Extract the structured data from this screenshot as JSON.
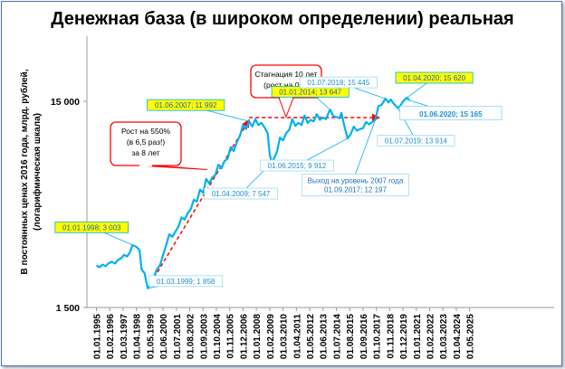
{
  "chart_data": {
    "type": "line",
    "title": "Денежная база (в широком определении) реальная",
    "ylabel_lines": [
      "В постоянных ценах 2016 года, млрд. рублей,",
      "(логарифмическая шкала)"
    ],
    "y_scale": "log",
    "ylim": [
      1500,
      24000
    ],
    "y_ticks": [
      {
        "value": 1500,
        "label": "1 500"
      },
      {
        "value": 15000,
        "label": "15 000"
      }
    ],
    "x_ticks": [
      "01.01.1995",
      "01.02.1996",
      "01.03.1997",
      "01.04.1998",
      "01.05.1999",
      "01.06.2000",
      "01.07.2001",
      "01.08.2002",
      "01.09.2003",
      "01.10.2004",
      "01.11.2005",
      "01.12.2006",
      "01.01.2008",
      "01.02.2009",
      "01.03.2010",
      "01.04.2011",
      "01.05.2012",
      "01.06.2013",
      "01.07.2014",
      "01.08.2015",
      "01.09.2016",
      "01.10.2017",
      "01.11.2018",
      "01.12.2019",
      "01.01.2021",
      "01.02.2022",
      "01.03.2023",
      "01.04.2024",
      "01.05.2025"
    ],
    "grid": false,
    "series": [
      {
        "color": "#00b0f0",
        "points": [
          [
            "1995-01",
            2400
          ],
          [
            "1995-04",
            2350
          ],
          [
            "1995-07",
            2420
          ],
          [
            "1995-10",
            2380
          ],
          [
            "1996-01",
            2460
          ],
          [
            "1996-04",
            2500
          ],
          [
            "1996-07",
            2450
          ],
          [
            "1996-10",
            2550
          ],
          [
            "1997-01",
            2600
          ],
          [
            "1997-04",
            2700
          ],
          [
            "1997-07",
            2650
          ],
          [
            "1997-10",
            2800
          ],
          [
            "1997-12",
            3000
          ],
          [
            "1998-01",
            3003
          ],
          [
            "1998-04",
            2950
          ],
          [
            "1998-07",
            2850
          ],
          [
            "1998-09",
            2300
          ],
          [
            "1998-12",
            2200
          ],
          [
            "1999-03",
            1858
          ],
          [
            "1999-06",
            1950
          ],
          [
            "1999-09",
            2100
          ],
          [
            "1999-12",
            2300
          ],
          [
            "2000-03",
            2400
          ],
          [
            "2000-06",
            2700
          ],
          [
            "2000-09",
            3000
          ],
          [
            "2000-12",
            3400
          ],
          [
            "2001-03",
            3300
          ],
          [
            "2001-06",
            3500
          ],
          [
            "2001-09",
            3700
          ],
          [
            "2001-12",
            4100
          ],
          [
            "2002-03",
            4000
          ],
          [
            "2002-06",
            4300
          ],
          [
            "2002-09",
            4500
          ],
          [
            "2002-12",
            5000
          ],
          [
            "2003-03",
            4900
          ],
          [
            "2003-06",
            5600
          ],
          [
            "2003-09",
            5400
          ],
          [
            "2003-12",
            6300
          ],
          [
            "2004-03",
            6000
          ],
          [
            "2004-06",
            6400
          ],
          [
            "2004-09",
            6600
          ],
          [
            "2004-12",
            7400
          ],
          [
            "2005-03",
            7100
          ],
          [
            "2005-06",
            7700
          ],
          [
            "2005-09",
            7900
          ],
          [
            "2005-12",
            9000
          ],
          [
            "2006-03",
            8600
          ],
          [
            "2006-06",
            9500
          ],
          [
            "2006-09",
            10200
          ],
          [
            "2006-12",
            11500
          ],
          [
            "2007-03",
            11000
          ],
          [
            "2007-06",
            11992
          ],
          [
            "2007-09",
            11300
          ],
          [
            "2007-12",
            12300
          ],
          [
            "2008-03",
            11500
          ],
          [
            "2008-06",
            11800
          ],
          [
            "2008-09",
            11200
          ],
          [
            "2008-12",
            10500
          ],
          [
            "2009-02",
            8300
          ],
          [
            "2009-04",
            7547
          ],
          [
            "2009-06",
            7900
          ],
          [
            "2009-09",
            8500
          ],
          [
            "2009-12",
            10000
          ],
          [
            "2010-03",
            9700
          ],
          [
            "2010-06",
            10500
          ],
          [
            "2010-09",
            10900
          ],
          [
            "2010-12",
            12300
          ],
          [
            "2011-03",
            11400
          ],
          [
            "2011-06",
            11800
          ],
          [
            "2011-09",
            11500
          ],
          [
            "2011-12",
            12800
          ],
          [
            "2012-03",
            11800
          ],
          [
            "2012-06",
            12200
          ],
          [
            "2012-09",
            12000
          ],
          [
            "2012-12",
            13000
          ],
          [
            "2013-03",
            12200
          ],
          [
            "2013-06",
            12500
          ],
          [
            "2013-09",
            12300
          ],
          [
            "2013-12",
            13400
          ],
          [
            "2014-01",
            13647
          ],
          [
            "2014-04",
            12700
          ],
          [
            "2014-07",
            12600
          ],
          [
            "2014-10",
            12400
          ],
          [
            "2014-12",
            13200
          ],
          [
            "2015-03",
            11300
          ],
          [
            "2015-06",
            9912
          ],
          [
            "2015-09",
            10400
          ],
          [
            "2015-12",
            11300
          ],
          [
            "2016-03",
            10800
          ],
          [
            "2016-06",
            11000
          ],
          [
            "2016-09",
            11100
          ],
          [
            "2016-12",
            11900
          ],
          [
            "2017-03",
            11600
          ],
          [
            "2017-06",
            11900
          ],
          [
            "2017-09",
            12197
          ],
          [
            "2017-12",
            14200
          ],
          [
            "2018-03",
            14400
          ],
          [
            "2018-07",
            15445
          ],
          [
            "2018-10",
            14800
          ],
          [
            "2018-12",
            15300
          ],
          [
            "2019-03",
            14600
          ],
          [
            "2019-07",
            13914
          ],
          [
            "2019-10",
            14400
          ],
          [
            "2019-12",
            15000
          ],
          [
            "2020-02",
            15300
          ],
          [
            "2020-04",
            15620
          ],
          [
            "2020-06",
            15165
          ]
        ]
      }
    ],
    "trend_lines": [
      {
        "from": [
          "1999-03",
          1858
        ],
        "to": [
          "2007-06",
          12200
        ],
        "color": "#ff0000",
        "style": "dashed"
      },
      {
        "from": [
          "2007-06",
          12500
        ],
        "to": [
          "2018-01",
          12500
        ],
        "color": "#ff0000",
        "style": "dashed"
      }
    ],
    "annotations": [
      {
        "text": "01.01.1998; 3 003",
        "at": [
          "1998-01",
          3003
        ],
        "style": "yellow",
        "tx": -46,
        "ty": -20
      },
      {
        "text": "01.03.1999; 1 858",
        "at": [
          "1999-03",
          1858
        ],
        "style": "box",
        "tx": 42,
        "ty": -8
      },
      {
        "text": "01.06.2007; 11 992",
        "at": [
          "2007-06",
          11992
        ],
        "style": "yellow",
        "tx": -70,
        "ty": -18
      },
      {
        "text": "01.04.2009; 7 547",
        "at": [
          "2009-04",
          7547
        ],
        "style": "box",
        "tx": -34,
        "ty": 34
      },
      {
        "text": "01.01.2014; 13 647",
        "at": [
          "2014-01",
          13647
        ],
        "style": "yellow",
        "tx": -22,
        "ty": -20
      },
      {
        "text": "01.06.2015; 9 912",
        "at": [
          "2015-06",
          9912
        ],
        "style": "box",
        "tx": -56,
        "ty": 30
      },
      {
        "text": "01.07.2018; 15 445",
        "at": [
          "2018-07",
          15445
        ],
        "style": "box",
        "tx": -52,
        "ty": -18
      },
      {
        "text": "01.04.2020; 15 620",
        "at": [
          "2020-04",
          15620
        ],
        "style": "yellow",
        "tx": 30,
        "ty": -22
      },
      {
        "text": "01.07.2019; 13 914",
        "at": [
          "2019-07",
          13914
        ],
        "style": "box",
        "tx": 20,
        "ty": 36
      },
      {
        "text": "01.06.2020;  15 165",
        "at": [
          "2020-06",
          15165
        ],
        "style": "big",
        "tx": 46,
        "ty": 14
      }
    ],
    "notes": [
      {
        "lines": [
          "Выход на уровень 2007 года",
          "01.09.2017; 12 197"
        ],
        "at": [
          "2017-09",
          12197
        ],
        "tx": -22,
        "ty": 72
      }
    ],
    "callouts": [
      {
        "lines": [
          "Рост на 550%",
          "(в 6,5 раз!)",
          "за 8 лет"
        ],
        "target": [
          "2004-01",
          7000
        ]
      },
      {
        "lines": [
          "Стагнация 10 лет",
          "(рост на 0%)"
        ],
        "target": [
          "2010-06",
          12600
        ]
      }
    ]
  }
}
